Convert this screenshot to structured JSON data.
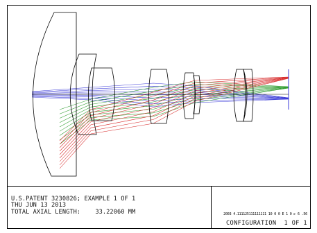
{
  "info": {
    "line1": "U.S.PATENT 3230826; EXAMPLE 1 OF 1",
    "line2": "THU JUN 13 2013",
    "length_label": "TOTAL AXIAL LENGTH:",
    "length_value": "33.22060 MM"
  },
  "scale_text": "2003 4.111125111111111 10 0 0 E 1 0 ► 6 .56",
  "configuration": "CONFIGURATION  1 OF 1",
  "colors": {
    "field_1": "#3a3ad8",
    "field_2": "#2c9b2c",
    "field_3": "#d82a2a",
    "lens_outline": "#000000"
  }
}
